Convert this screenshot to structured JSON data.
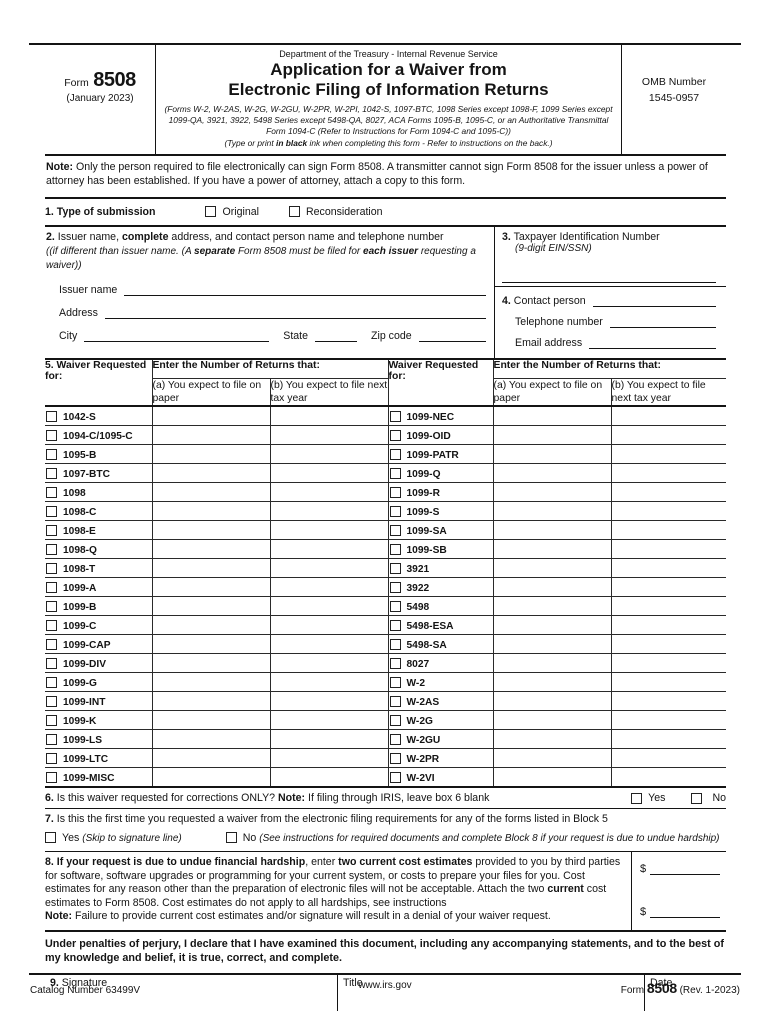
{
  "header": {
    "form_word": "Form",
    "form_number": "8508",
    "revision": "(January 2023)",
    "agency": "Department of the Treasury - Internal Revenue Service",
    "title_line1": "Application for a Waiver from",
    "title_line2": "Electronic Filing of Information Returns",
    "subtitle": "(Forms W-2, W-2AS, W-2G, W-2GU, W-2PR, W-2PI, 1042-S, 1097-BTC, 1098 Series except 1098-F, 1099 Series except 1099-QA, 3921, 3922, 5498 Series except 5498-QA, 8027, ACA Forms 1095-B, 1095-C, or an Authoritative Transmittal Form 1094-C (Refer to Instructions for Form 1094-C and 1095-C))",
    "type_pre": "(Type or print ",
    "type_bold": "in black",
    "type_post": " ink when completing this form - Refer to instructions on the back.)",
    "omb_label": "OMB Number",
    "omb_number": "1545-0957"
  },
  "note": {
    "bold": "Note:",
    "text": " Only the person required to file electronically can sign Form 8508. A transmitter cannot sign Form 8508 for the issuer unless a power of attorney has been established. If you have a power of attorney, attach a copy to this form."
  },
  "line1": {
    "number": "1.",
    "label": " Type of submission",
    "original": "Original",
    "reconsideration": "Reconsideration"
  },
  "line2": {
    "number": "2.",
    "seg_a": " Issuer name, ",
    "seg_b": "complete",
    "seg_c": " address, and contact person name and telephone number",
    "note_a": "((if different than issuer name. (A ",
    "note_b": "separate",
    "note_c": " Form 8508 must be filed for ",
    "note_d": "each issuer",
    "note_e": " requesting a waiver))",
    "issuer_label": "Issuer name",
    "address_label": "Address",
    "city_label": "City",
    "state_label": "State",
    "zip_label": "Zip code"
  },
  "line3": {
    "number": "3.",
    "label": " Taxpayer Identification Number",
    "sublabel": "(9-digit EIN/SSN)"
  },
  "line4": {
    "number": "4.",
    "contact_label": " Contact person",
    "phone_label": "Telephone number",
    "email_label": "Email address"
  },
  "table": {
    "number": "5.",
    "waiver_header": " Waiver Requested for:",
    "waiver_header_right": "Waiver Requested for:",
    "enter_header": "Enter the Number of Returns that:",
    "col_a": "(a) You expect to file on paper",
    "col_b": "(b) You expect to file next tax year",
    "rows": [
      {
        "left": "1042-S",
        "right": "1099-NEC"
      },
      {
        "left": "1094-C/1095-C",
        "right": "1099-OID"
      },
      {
        "left": "1095-B",
        "right": "1099-PATR"
      },
      {
        "left": "1097-BTC",
        "right": "1099-Q"
      },
      {
        "left": "1098",
        "right": "1099-R"
      },
      {
        "left": "1098-C",
        "right": "1099-S"
      },
      {
        "left": "1098-E",
        "right": "1099-SA"
      },
      {
        "left": "1098-Q",
        "right": "1099-SB"
      },
      {
        "left": "1098-T",
        "right": "3921"
      },
      {
        "left": "1099-A",
        "right": "3922"
      },
      {
        "left": "1099-B",
        "right": "5498"
      },
      {
        "left": "1099-C",
        "right": "5498-ESA"
      },
      {
        "left": "1099-CAP",
        "right": "5498-SA"
      },
      {
        "left": "1099-DIV",
        "right": "8027"
      },
      {
        "left": "1099-G",
        "right": "W-2"
      },
      {
        "left": "1099-INT",
        "right": "W-2AS"
      },
      {
        "left": "1099-K",
        "right": "W-2G"
      },
      {
        "left": "1099-LS",
        "right": "W-2GU"
      },
      {
        "left": "1099-LTC",
        "right": "W-2PR"
      },
      {
        "left": "1099-MISC",
        "right": "W-2VI"
      }
    ]
  },
  "line6": {
    "number": "6.",
    "seg_a": " Is this waiver requested for corrections ONLY? ",
    "note_bold": "Note:",
    "seg_b": " If filing through IRIS, leave box 6 blank",
    "yes": "Yes",
    "no": "No"
  },
  "line7": {
    "number": "7.",
    "text": " Is this the first time you requested a waiver from the electronic filing requirements for any of the forms listed in Block 5",
    "yes": "Yes ",
    "yes_note": "(Skip to signature line)",
    "no": "No ",
    "no_note": "(See instructions for required documents and complete Block 8 if your request is due to undue hardship)"
  },
  "line8": {
    "number": "8.",
    "seg_a": " If your request is due to undue financial hardship",
    "seg_b": ", enter ",
    "seg_c": "two current cost estimates",
    "seg_d": " provided to you by third parties for software, software upgrades or programming for your current system, or costs to prepare your files for you. Cost estimates for any reason other than the preparation of electronic files will not be acceptable. Attach the two ",
    "seg_e": "current",
    "seg_f": " cost estimates to Form 8508. Cost estimates do not apply to all hardships, see instructions",
    "note_bold": "Note:",
    "note_text": " Failure to provide current cost estimates and/or signature will result in a denial of your waiver request.",
    "dollar": "$"
  },
  "perjury": "Under penalties of perjury, I declare that I have examined this document, including any accompanying statements, and to the best of my knowledge and belief, it is true, correct, and complete.",
  "signature": {
    "number": "9.",
    "label": " Signature",
    "title_label": "Title",
    "date_label": "Date"
  },
  "footer": {
    "catalog": "Catalog Number 63499V",
    "website": "www.irs.gov",
    "form_word": "Form ",
    "form_number": "8508",
    "revision": " (Rev. 1-2023)"
  }
}
